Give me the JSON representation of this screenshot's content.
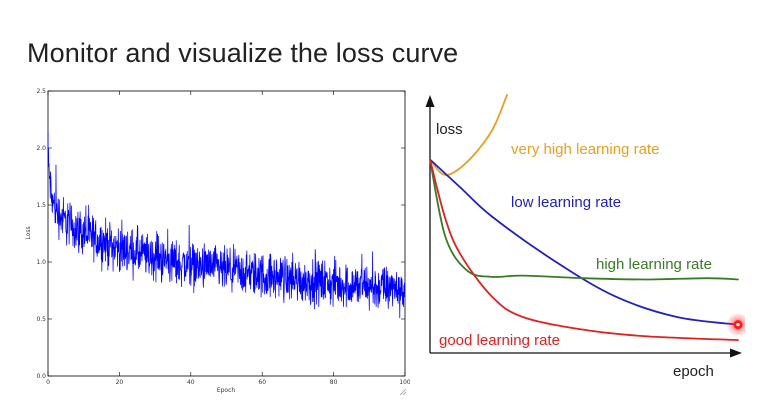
{
  "slide": {
    "title": "Monitor and visualize the loss curve"
  },
  "chart_data": [
    {
      "type": "line",
      "xlabel": "Epoch",
      "ylabel": "Loss",
      "xlim": [
        0,
        100
      ],
      "ylim": [
        0.0,
        2.5
      ],
      "x_ticks": [
        "0",
        "20",
        "40",
        "60",
        "80",
        "100"
      ],
      "y_ticks": [
        "0.0",
        "0.5",
        "1.0",
        "1.5",
        "2.0",
        "2.5"
      ],
      "grid": false,
      "series": [
        {
          "color": "#0000ff",
          "x": [
            0,
            1,
            2,
            3,
            5,
            10,
            15,
            20,
            30,
            40,
            50,
            60,
            70,
            80,
            90,
            100
          ],
          "y": [
            1.9,
            1.55,
            1.48,
            1.42,
            1.35,
            1.25,
            1.18,
            1.12,
            1.03,
            0.97,
            0.92,
            0.88,
            0.84,
            0.81,
            0.78,
            0.75
          ],
          "noise": 0.14
        }
      ]
    },
    {
      "type": "line",
      "xlabel": "epoch",
      "ylabel": "loss",
      "series": [
        {
          "name": "very high learning rate",
          "color": "#e8a020",
          "x": [
            0,
            0.05,
            0.12,
            0.2,
            0.25
          ],
          "y": [
            0.75,
            0.69,
            0.74,
            0.86,
            1.0
          ]
        },
        {
          "name": "low learning rate",
          "color": "#2222bb",
          "x": [
            0,
            0.1,
            0.2,
            0.4,
            0.6,
            0.8,
            1.0
          ],
          "y": [
            0.75,
            0.64,
            0.53,
            0.36,
            0.22,
            0.14,
            0.11
          ]
        },
        {
          "name": "high learning rate",
          "color": "#3a7a28",
          "x": [
            0,
            0.05,
            0.12,
            0.2,
            0.3,
            0.5,
            0.7,
            0.9,
            1.0
          ],
          "y": [
            0.75,
            0.45,
            0.32,
            0.295,
            0.3,
            0.29,
            0.285,
            0.29,
            0.285
          ]
        },
        {
          "name": "good learning rate",
          "color": "#dd2222",
          "x": [
            0,
            0.05,
            0.1,
            0.2,
            0.3,
            0.5,
            0.7,
            1.0
          ],
          "y": [
            0.75,
            0.52,
            0.38,
            0.22,
            0.14,
            0.09,
            0.065,
            0.05
          ]
        }
      ]
    }
  ]
}
